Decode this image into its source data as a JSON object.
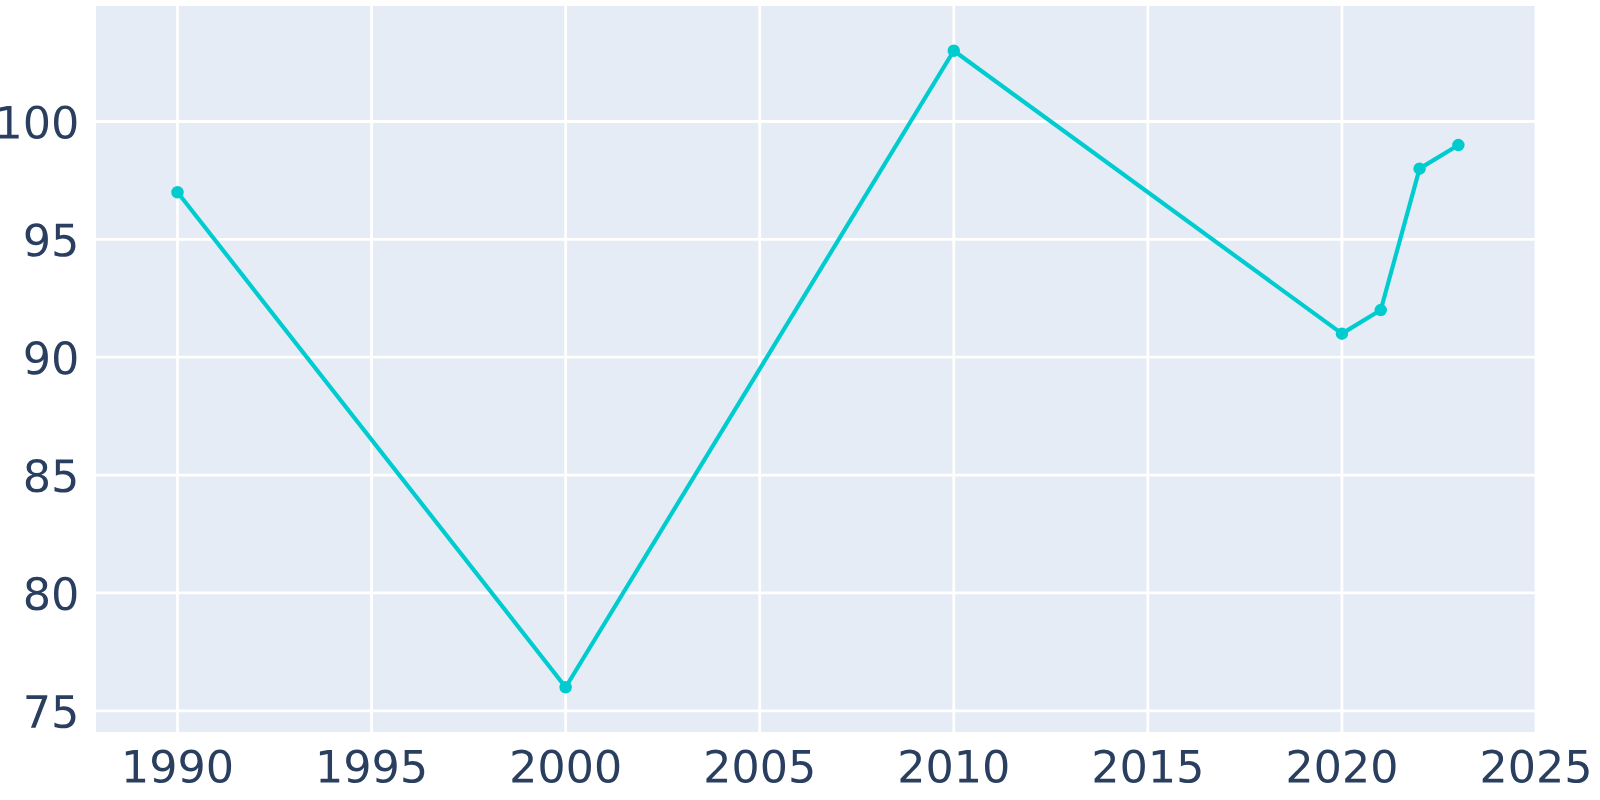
{
  "chart_data": {
    "type": "line",
    "x": [
      1990,
      2000,
      2010,
      2020,
      2021,
      2022,
      2023
    ],
    "series": [
      {
        "color": "#00ccd0",
        "values": [
          97,
          76,
          103,
          91,
          92,
          98,
          99
        ]
      }
    ],
    "xlim": [
      1987.9,
      2025
    ],
    "xticks": [
      1990,
      1995,
      2000,
      2005,
      2010,
      2015,
      2020,
      2025
    ],
    "ylim": [
      74.1,
      104.9
    ],
    "yticks": [
      75,
      80,
      85,
      90,
      95,
      100
    ],
    "grid": true,
    "marker": "circle",
    "line_style": "solid"
  }
}
